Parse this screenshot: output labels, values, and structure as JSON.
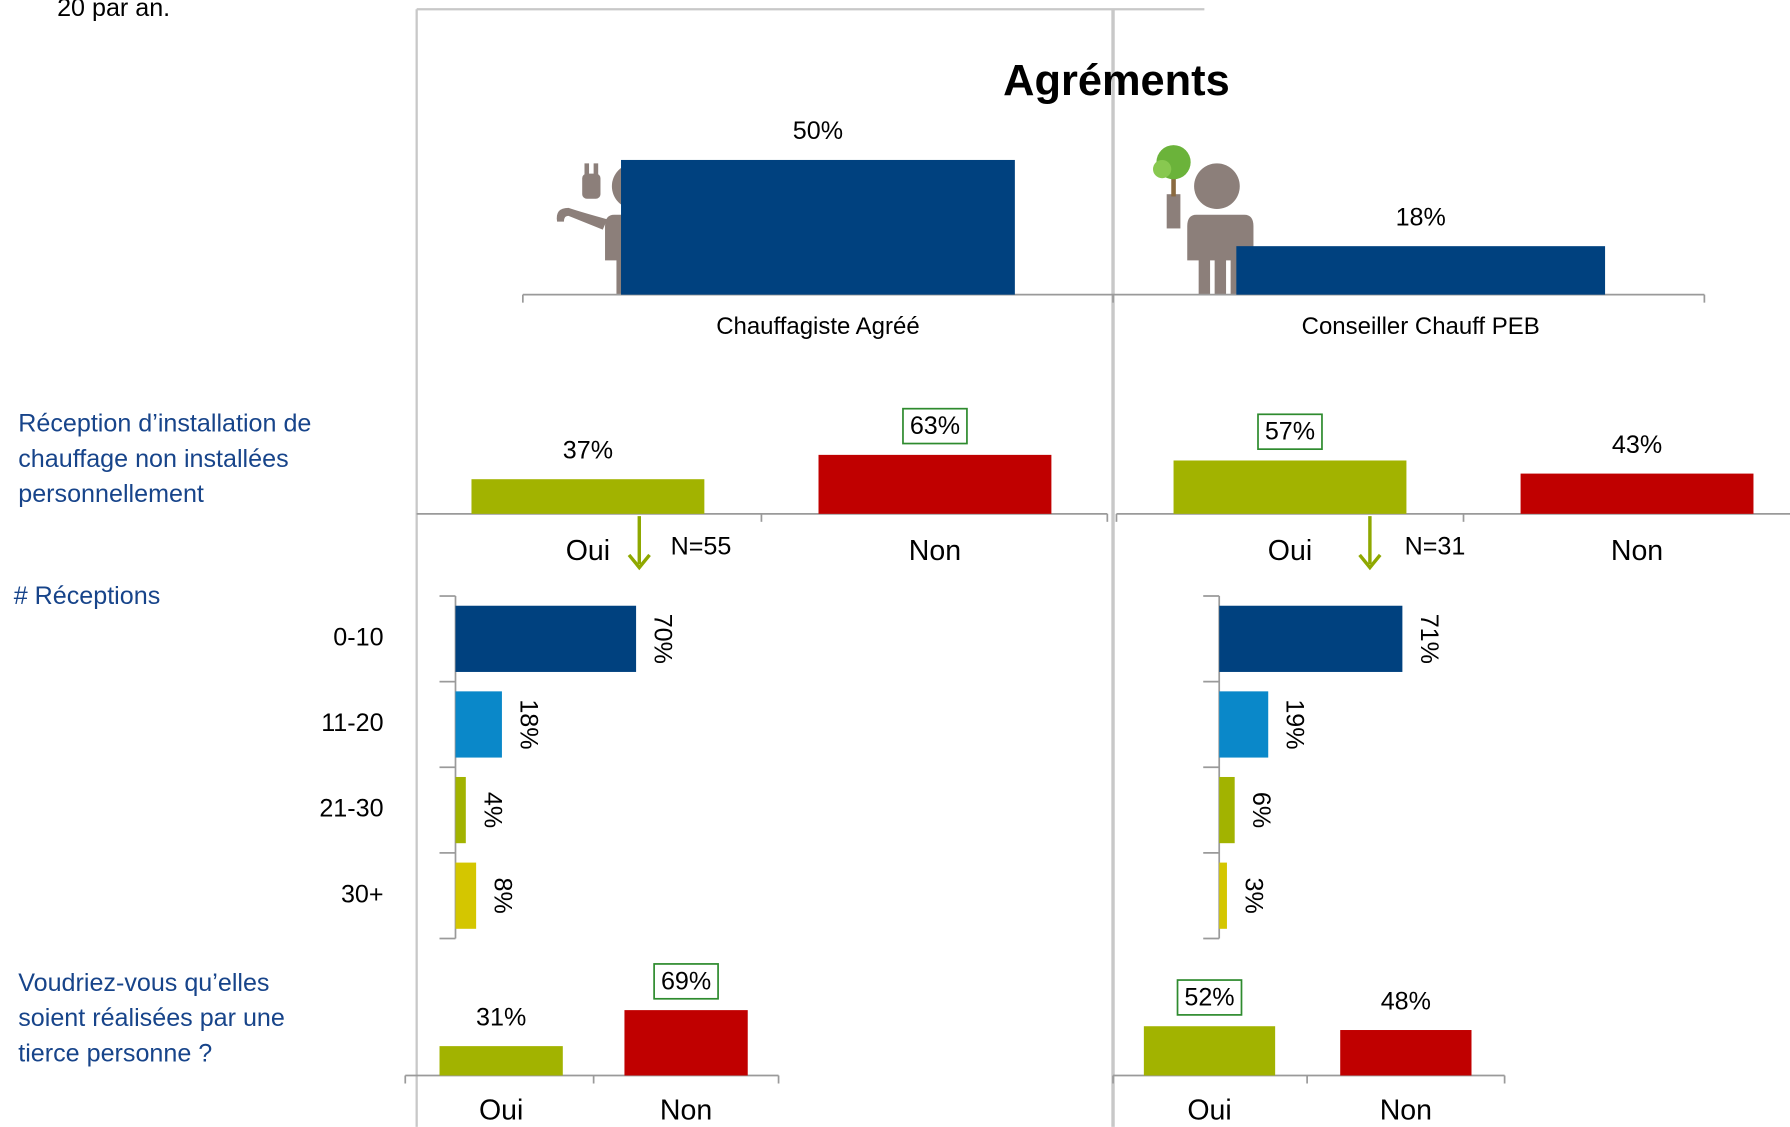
{
  "header_fragment": "20 par an.",
  "title": "Agréments",
  "questions": {
    "reception": [
      "Réception d’installation de",
      "chauffage non installées",
      "personnellement"
    ],
    "count": "# Réceptions",
    "tierce": [
      "Voudriez-vous qu’elles",
      "soient réalisées par une",
      "tierce personne ?"
    ]
  },
  "chart_data": [
    {
      "type": "bar",
      "categories": [
        "Chauffagiste Agréé",
        "Conseiller Chauff PEB"
      ],
      "values": [
        50,
        18
      ],
      "value_labels": [
        "50%",
        "18%"
      ],
      "colors": [
        "#00417f",
        "#00417f"
      ],
      "ylim": [
        0,
        100
      ]
    },
    {
      "type": "bar",
      "categories": [
        "Oui",
        "Non"
      ],
      "values": [
        37,
        63
      ],
      "value_labels": [
        "37%",
        "63%"
      ],
      "colors": [
        "#a2b300",
        "#c00000"
      ],
      "boxed": [
        false,
        true
      ],
      "n_label": "N=55",
      "ylim": [
        0,
        100
      ]
    },
    {
      "type": "bar",
      "categories": [
        "Oui",
        "Non"
      ],
      "values": [
        57,
        43
      ],
      "value_labels": [
        "57%",
        "43%"
      ],
      "colors": [
        "#a2b300",
        "#c00000"
      ],
      "boxed": [
        true,
        false
      ],
      "n_label": "N=31",
      "ylim": [
        0,
        100
      ]
    },
    {
      "type": "hbar",
      "categories": [
        "0-10",
        "11-20",
        "21-30",
        "30+"
      ],
      "values": [
        70,
        18,
        4,
        8
      ],
      "value_labels": [
        "70%",
        "18%",
        "4%",
        "8%"
      ],
      "colors": [
        "#00417f",
        "#0a88c9",
        "#a2b300",
        "#d4c600"
      ],
      "xlim": [
        0,
        100
      ]
    },
    {
      "type": "hbar",
      "values": [
        71,
        19,
        6,
        3
      ],
      "value_labels": [
        "71%",
        "19%",
        "6%",
        "3%"
      ],
      "colors": [
        "#00417f",
        "#0a88c9",
        "#a2b300",
        "#d4c600"
      ],
      "xlim": [
        0,
        100
      ]
    },
    {
      "type": "bar",
      "categories": [
        "Oui",
        "Non"
      ],
      "values": [
        31,
        69
      ],
      "value_labels": [
        "31%",
        "69%"
      ],
      "colors": [
        "#a2b300",
        "#c00000"
      ],
      "boxed": [
        false,
        true
      ],
      "ylim": [
        0,
        100
      ]
    },
    {
      "type": "bar",
      "categories": [
        "Oui",
        "Non"
      ],
      "values": [
        52,
        48
      ],
      "value_labels": [
        "52%",
        "48%"
      ],
      "colors": [
        "#a2b300",
        "#c00000"
      ],
      "boxed": [
        true,
        false
      ],
      "ylim": [
        0,
        100
      ]
    }
  ]
}
